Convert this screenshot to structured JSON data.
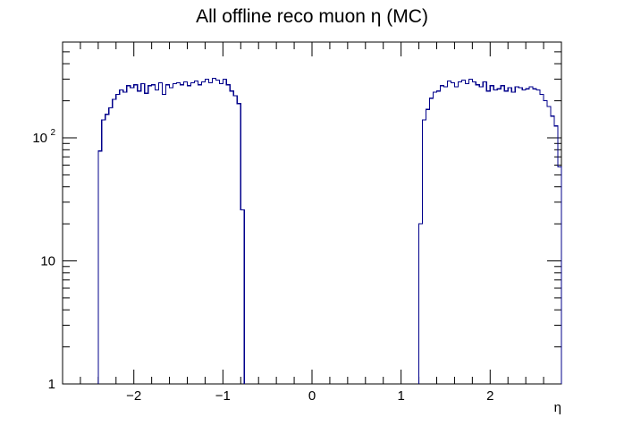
{
  "chart_data": {
    "type": "histogram",
    "title": "All offline reco muon η (MC)",
    "xlabel": "η",
    "ylabel": "",
    "xlim": [
      -2.8,
      2.8
    ],
    "ylim": [
      1,
      600
    ],
    "yscale": "log",
    "grid": false,
    "legend": "none",
    "line_color": "#00008b",
    "bin_width": 0.04,
    "xticks": [
      {
        "value": -2,
        "label": "−2"
      },
      {
        "value": -1,
        "label": "−1"
      },
      {
        "value": 0,
        "label": "0"
      },
      {
        "value": 1,
        "label": "1"
      },
      {
        "value": 2,
        "label": "2"
      }
    ],
    "yticks": [
      {
        "value": 1,
        "label": "1"
      },
      {
        "value": 10,
        "label": "10"
      },
      {
        "value": 100,
        "label": "10",
        "sup": "2"
      }
    ],
    "segments": [
      {
        "x_start": -2.4,
        "values": [
          78,
          140,
          155,
          175,
          205,
          225,
          245,
          235,
          265,
          255,
          270,
          240,
          275,
          230,
          265,
          270,
          245,
          280,
          225,
          270,
          255,
          275,
          280,
          270,
          285,
          265,
          280,
          290,
          270,
          285,
          300,
          280,
          305,
          295,
          275,
          300,
          270,
          240,
          220,
          190,
          26
        ]
      },
      {
        "x_start": 1.2,
        "values": [
          20,
          140,
          170,
          210,
          235,
          240,
          265,
          260,
          290,
          280,
          260,
          285,
          295,
          275,
          300,
          285,
          270,
          260,
          285,
          240,
          265,
          245,
          250,
          265,
          240,
          255,
          235,
          260,
          255,
          245,
          250,
          260,
          250,
          245,
          225,
          200,
          180,
          150,
          125,
          58
        ]
      }
    ]
  }
}
